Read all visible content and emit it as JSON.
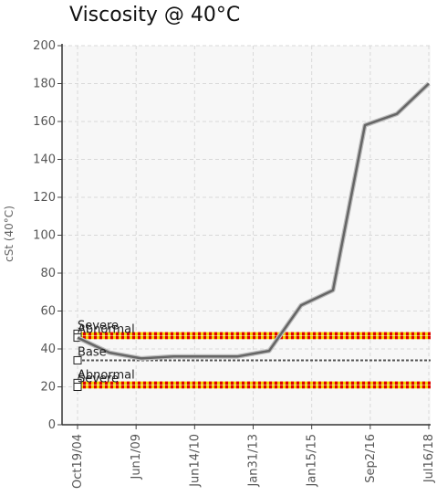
{
  "chart_data": {
    "type": "line",
    "title": "Viscosity @ 40°C",
    "ylabel": "cSt (40°C)",
    "xlabel": "",
    "ylim": [
      0,
      200
    ],
    "yticks": [
      0,
      20,
      40,
      60,
      80,
      100,
      120,
      140,
      160,
      180,
      200
    ],
    "x_tick_labels": [
      "Oct19/04",
      "Jun1/09",
      "Jun14/10",
      "Jan31/13",
      "Jan15/15",
      "Sep2/16",
      "Jul16/18"
    ],
    "grid": true,
    "series": [
      {
        "values": [
          46,
          38,
          35,
          36,
          36,
          36,
          39,
          63,
          71,
          158,
          164,
          180
        ],
        "color": "#666666"
      }
    ],
    "limits": [
      {
        "label": "Severe",
        "value": 48,
        "style": "dotted",
        "colors": [
          "#e00000",
          "#f5d000"
        ]
      },
      {
        "label": "Abnormal",
        "value": 46,
        "style": "dotted",
        "colors": [
          "#e00000",
          "#f5d000"
        ]
      },
      {
        "label": "Base",
        "value": 34,
        "style": "dashed",
        "colors": [
          "#555555"
        ]
      },
      {
        "label": "Abnormal",
        "value": 22,
        "style": "dotted",
        "colors": [
          "#e00000",
          "#f5d000"
        ]
      },
      {
        "label": "Severe",
        "value": 20,
        "style": "dotted",
        "colors": [
          "#e00000",
          "#f5d000"
        ]
      }
    ]
  }
}
